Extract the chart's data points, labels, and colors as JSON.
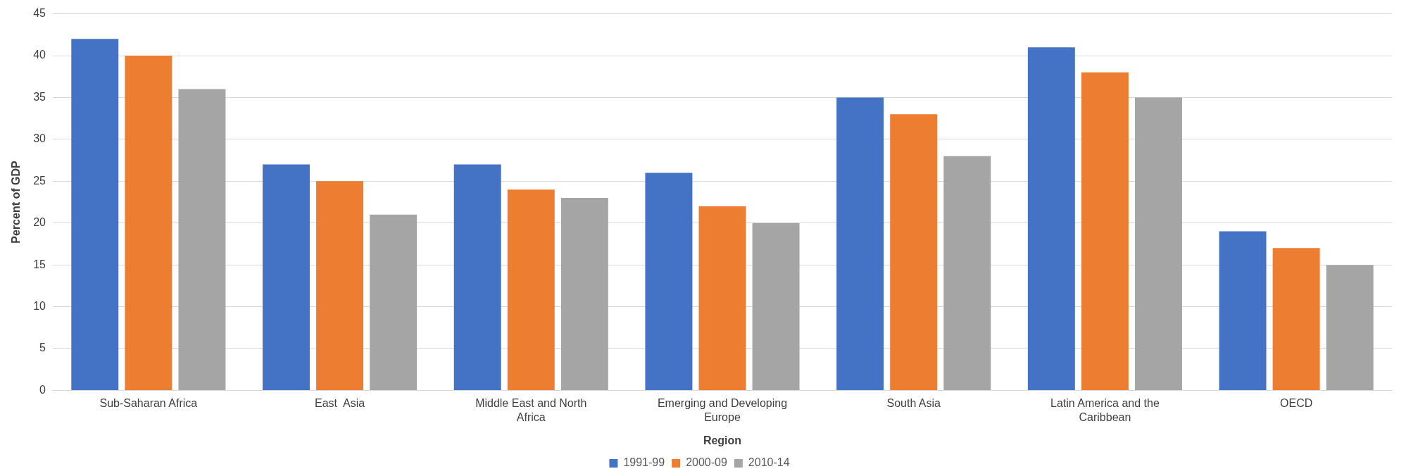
{
  "chart_data": {
    "type": "bar",
    "xlabel": "Region",
    "ylabel": "Percent of GDP",
    "categories": [
      "Sub-Saharan Africa",
      "East  Asia",
      "Middle East and North Africa",
      "Emerging and Developing Europe",
      "South Asia",
      "Latin America and the Caribbean",
      "OECD"
    ],
    "series": [
      {
        "name": "1991-99",
        "color": "#4472c4",
        "values": [
          42,
          27,
          27,
          26,
          35,
          41,
          19
        ]
      },
      {
        "name": "2000-09",
        "color": "#ed7d31",
        "values": [
          40,
          25,
          24,
          22,
          33,
          38,
          17
        ]
      },
      {
        "name": "2010-14",
        "color": "#a5a5a5",
        "values": [
          36,
          21,
          23,
          20,
          28,
          35,
          15
        ]
      }
    ],
    "ylim": [
      0,
      45
    ],
    "yticks": [
      0,
      5,
      10,
      15,
      20,
      25,
      30,
      35,
      40,
      45
    ],
    "grid": "y",
    "legend": "bottom"
  }
}
